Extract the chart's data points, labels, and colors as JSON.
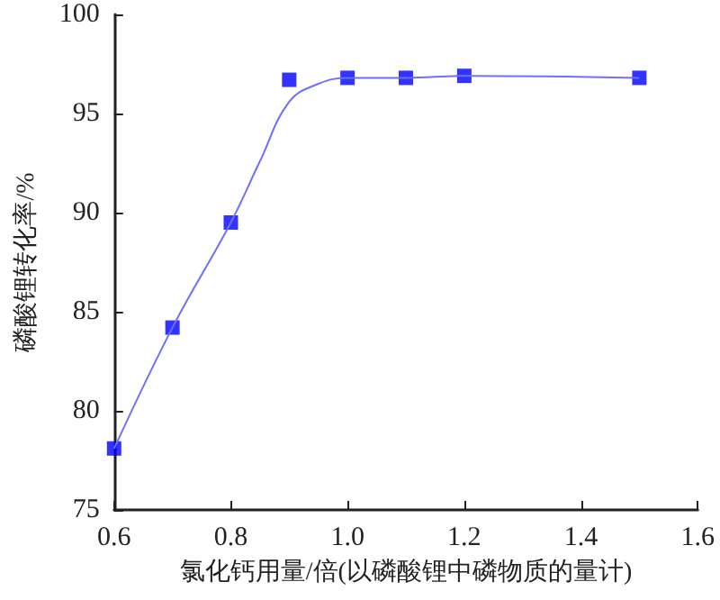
{
  "chart_data": {
    "type": "scatter",
    "xlabel": "氯化钙用量/倍(以磷酸锂中磷物质的量计)",
    "ylabel": "磷酸锂转化率/%",
    "xlim": [
      0.6,
      1.6
    ],
    "xticks": [
      {
        "value": 0.6,
        "label": "0.6"
      },
      {
        "value": 0.8,
        "label": "0.8"
      },
      {
        "value": 1.0,
        "label": "1.0"
      },
      {
        "value": 1.2,
        "label": "1.2"
      },
      {
        "value": 1.4,
        "label": "1.4"
      },
      {
        "value": 1.6,
        "label": "1.6"
      }
    ],
    "ylim": [
      75,
      100
    ],
    "yticks": [
      75,
      80,
      85,
      90,
      95,
      100
    ],
    "grid": false,
    "series": [
      {
        "type": "line",
        "color": "#6f6fff",
        "marker": "none",
        "x": [
          0.6,
          0.7,
          0.8,
          0.85,
          0.9,
          0.95,
          1.0,
          1.1,
          1.2,
          1.5
        ],
        "values": [
          78.1,
          84.2,
          89.5,
          92.6,
          95.6,
          96.5,
          96.8,
          96.8,
          96.9,
          96.8
        ]
      },
      {
        "color": "#0000ff",
        "marker": "square",
        "x": [
          0.6,
          0.7,
          0.8,
          0.9,
          1.0,
          1.1,
          1.2,
          1.5
        ],
        "values": [
          78.1,
          84.2,
          89.5,
          96.7,
          96.8,
          96.8,
          96.9,
          96.8
        ]
      }
    ]
  }
}
